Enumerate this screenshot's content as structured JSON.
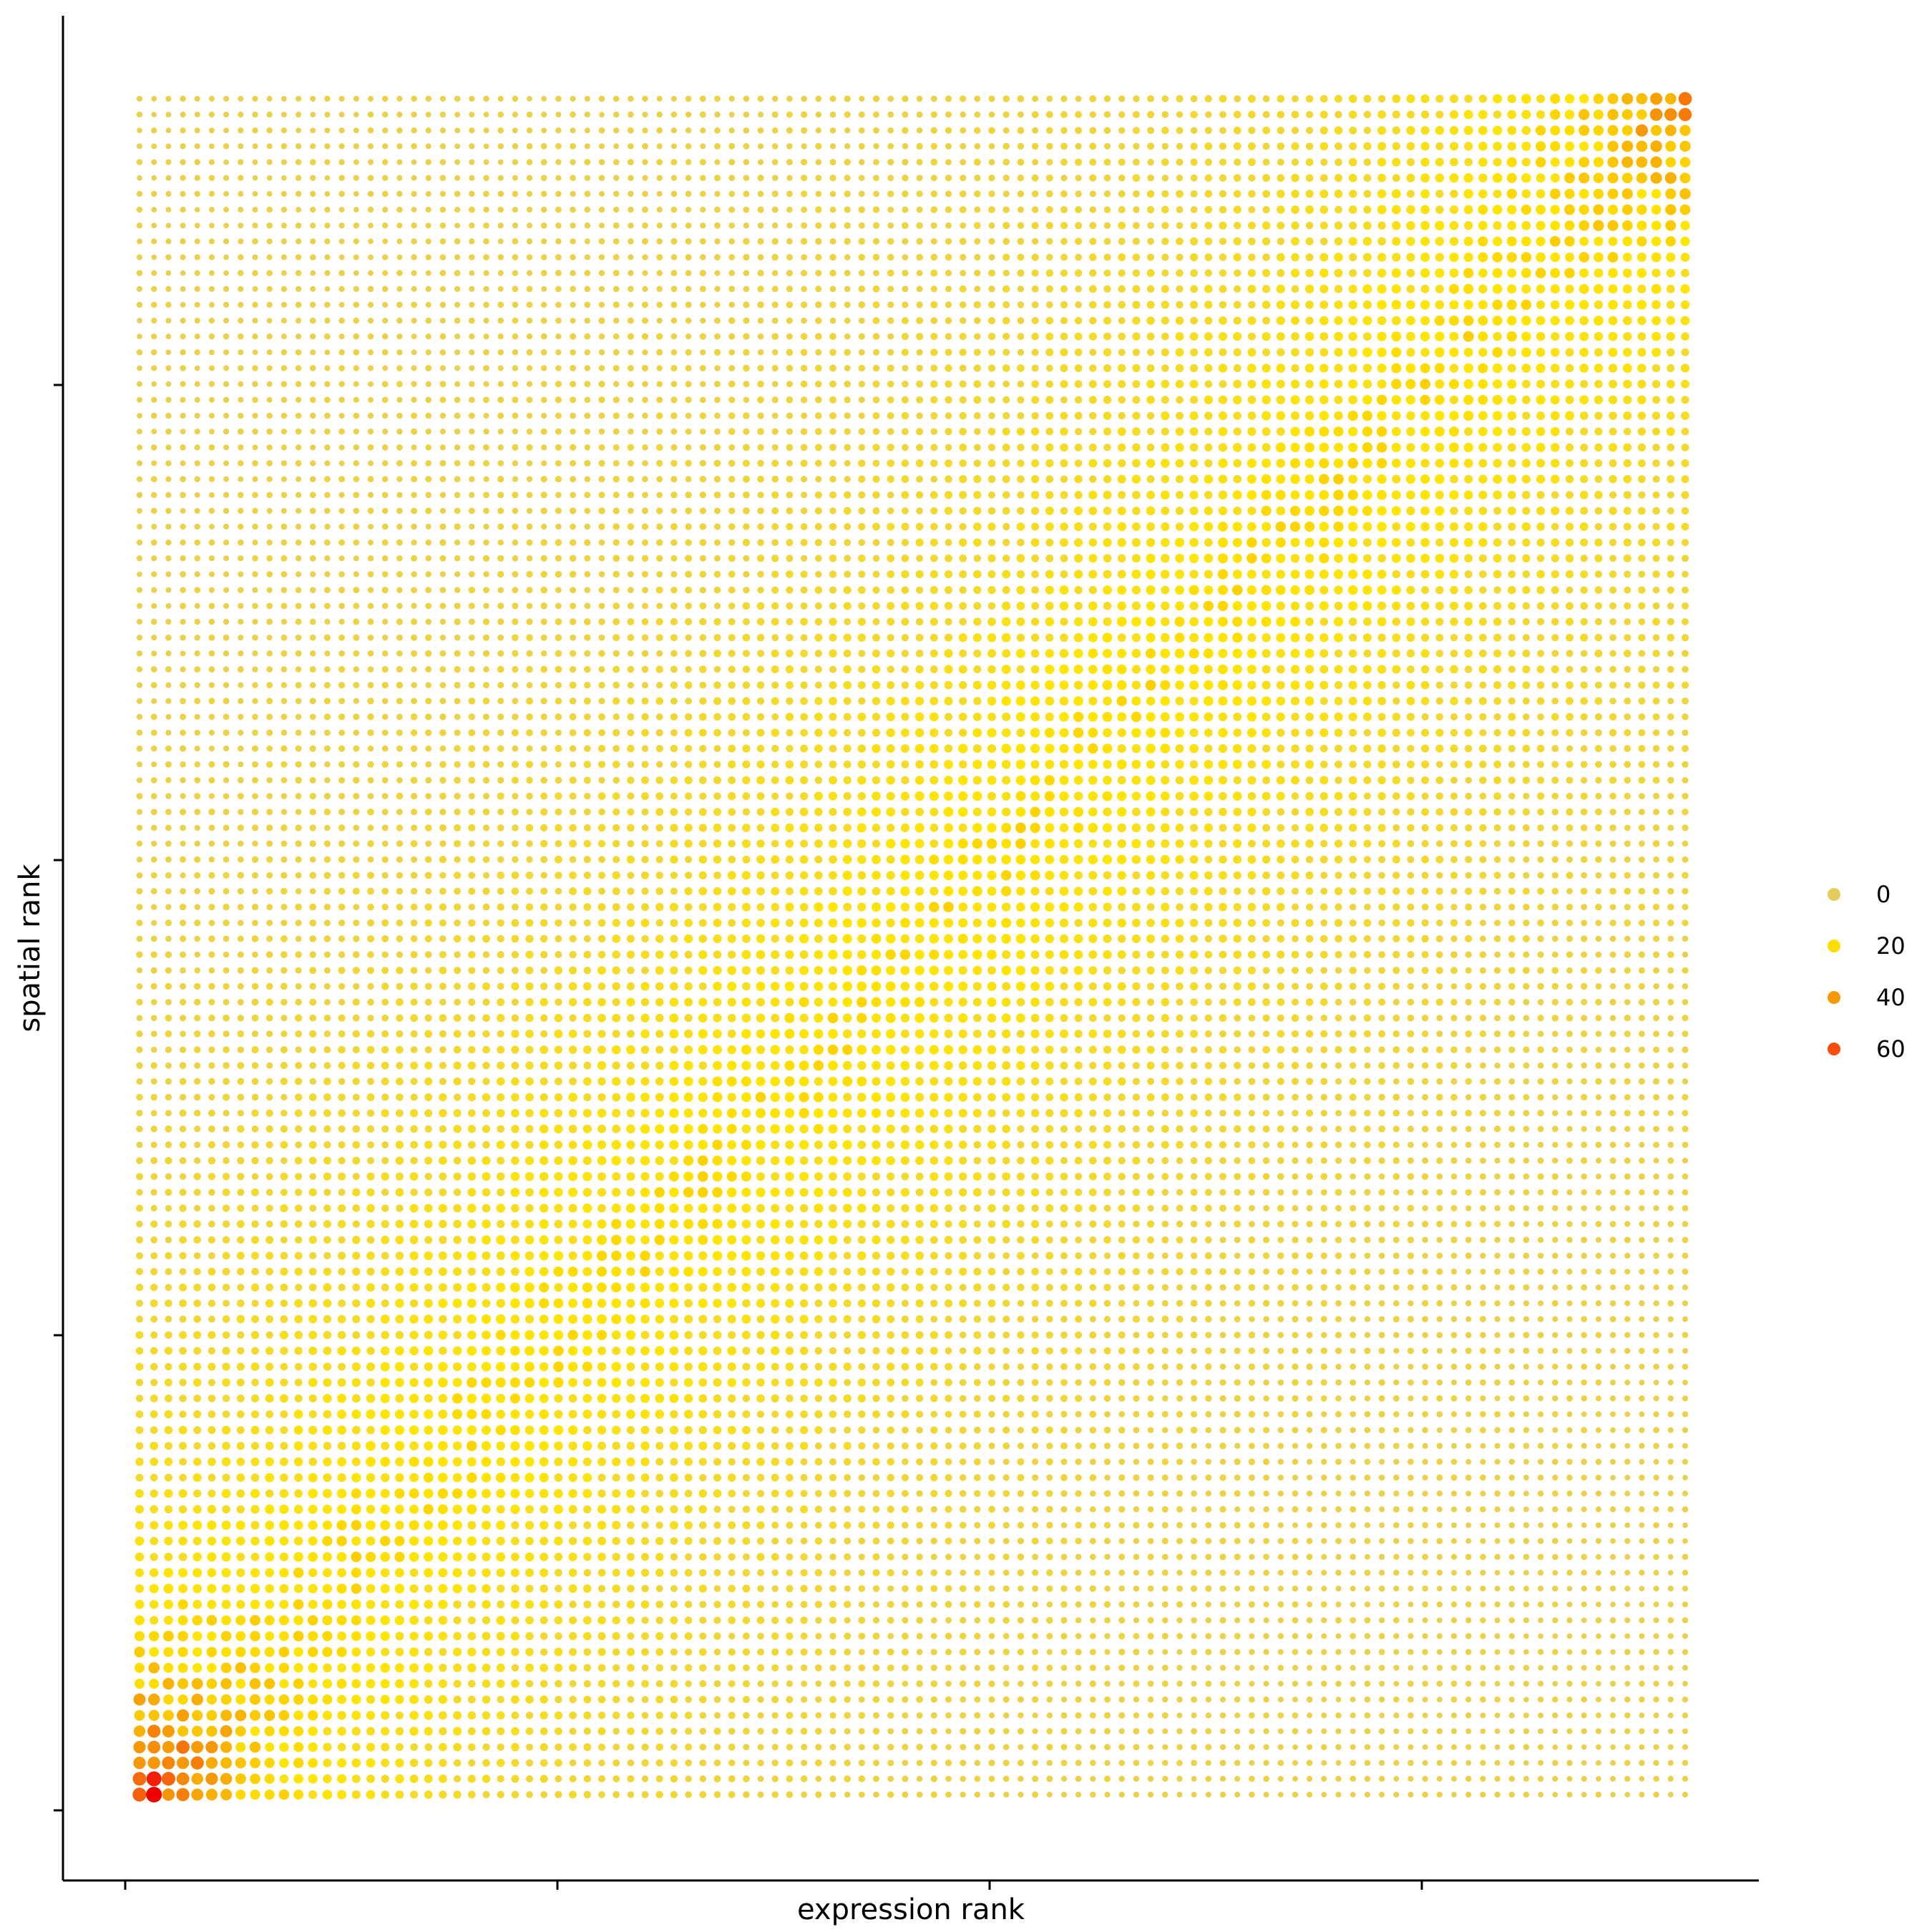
{
  "chart_data": {
    "type": "scatter",
    "title": "",
    "xlabel": "expression rank",
    "ylabel": "spatial rank",
    "grid_size": 108,
    "x_ticks": 4,
    "y_ticks": 4,
    "tick_labels_shown": false,
    "grid": false,
    "legend": {
      "placement": "right",
      "entries": [
        {
          "value": 0,
          "label": "0",
          "color": "#E6CC5A"
        },
        {
          "value": 20,
          "label": "20",
          "color": "#FFDD00"
        },
        {
          "value": 40,
          "label": "40",
          "color": "#F59A06"
        },
        {
          "value": 60,
          "label": "60",
          "color": "#F74D0F"
        }
      ]
    },
    "color_scale": {
      "stops": [
        {
          "value": 0,
          "color": "#E6CC5A"
        },
        {
          "value": 20,
          "color": "#FFE600"
        },
        {
          "value": 40,
          "color": "#F59A06"
        },
        {
          "value": 60,
          "color": "#F74D0F"
        },
        {
          "value": 70,
          "color": "#EE0000"
        }
      ]
    },
    "value_pattern": {
      "description_of_values": "count per (expression rank, spatial rank) cell",
      "corner_bottom_left": 70,
      "corner_top_right": 45,
      "diagonal_level": 18,
      "off_diagonal_level": 3
    }
  }
}
